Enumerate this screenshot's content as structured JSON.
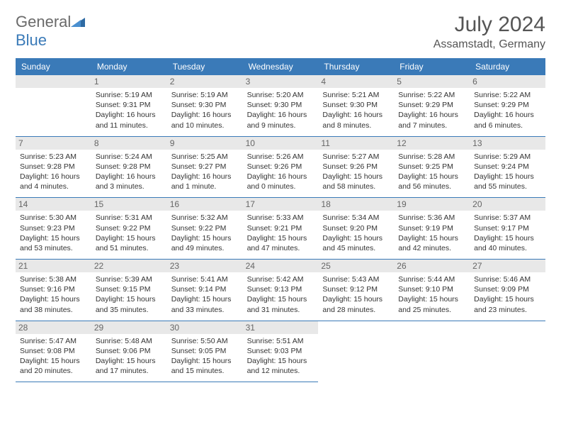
{
  "brand": {
    "part1": "General",
    "part2": "Blue"
  },
  "title": "July 2024",
  "location": "Assamstadt, Germany",
  "header_bg": "#3a7ab8",
  "text_color": "#333333",
  "daynum_bg": "#e8e8e8",
  "weekdays": [
    "Sunday",
    "Monday",
    "Tuesday",
    "Wednesday",
    "Thursday",
    "Friday",
    "Saturday"
  ],
  "weeks": [
    [
      {
        "n": "",
        "sr": "",
        "ss": "",
        "dl": ""
      },
      {
        "n": "1",
        "sr": "Sunrise: 5:19 AM",
        "ss": "Sunset: 9:31 PM",
        "dl": "Daylight: 16 hours and 11 minutes."
      },
      {
        "n": "2",
        "sr": "Sunrise: 5:19 AM",
        "ss": "Sunset: 9:30 PM",
        "dl": "Daylight: 16 hours and 10 minutes."
      },
      {
        "n": "3",
        "sr": "Sunrise: 5:20 AM",
        "ss": "Sunset: 9:30 PM",
        "dl": "Daylight: 16 hours and 9 minutes."
      },
      {
        "n": "4",
        "sr": "Sunrise: 5:21 AM",
        "ss": "Sunset: 9:30 PM",
        "dl": "Daylight: 16 hours and 8 minutes."
      },
      {
        "n": "5",
        "sr": "Sunrise: 5:22 AM",
        "ss": "Sunset: 9:29 PM",
        "dl": "Daylight: 16 hours and 7 minutes."
      },
      {
        "n": "6",
        "sr": "Sunrise: 5:22 AM",
        "ss": "Sunset: 9:29 PM",
        "dl": "Daylight: 16 hours and 6 minutes."
      }
    ],
    [
      {
        "n": "7",
        "sr": "Sunrise: 5:23 AM",
        "ss": "Sunset: 9:28 PM",
        "dl": "Daylight: 16 hours and 4 minutes."
      },
      {
        "n": "8",
        "sr": "Sunrise: 5:24 AM",
        "ss": "Sunset: 9:28 PM",
        "dl": "Daylight: 16 hours and 3 minutes."
      },
      {
        "n": "9",
        "sr": "Sunrise: 5:25 AM",
        "ss": "Sunset: 9:27 PM",
        "dl": "Daylight: 16 hours and 1 minute."
      },
      {
        "n": "10",
        "sr": "Sunrise: 5:26 AM",
        "ss": "Sunset: 9:26 PM",
        "dl": "Daylight: 16 hours and 0 minutes."
      },
      {
        "n": "11",
        "sr": "Sunrise: 5:27 AM",
        "ss": "Sunset: 9:26 PM",
        "dl": "Daylight: 15 hours and 58 minutes."
      },
      {
        "n": "12",
        "sr": "Sunrise: 5:28 AM",
        "ss": "Sunset: 9:25 PM",
        "dl": "Daylight: 15 hours and 56 minutes."
      },
      {
        "n": "13",
        "sr": "Sunrise: 5:29 AM",
        "ss": "Sunset: 9:24 PM",
        "dl": "Daylight: 15 hours and 55 minutes."
      }
    ],
    [
      {
        "n": "14",
        "sr": "Sunrise: 5:30 AM",
        "ss": "Sunset: 9:23 PM",
        "dl": "Daylight: 15 hours and 53 minutes."
      },
      {
        "n": "15",
        "sr": "Sunrise: 5:31 AM",
        "ss": "Sunset: 9:22 PM",
        "dl": "Daylight: 15 hours and 51 minutes."
      },
      {
        "n": "16",
        "sr": "Sunrise: 5:32 AM",
        "ss": "Sunset: 9:22 PM",
        "dl": "Daylight: 15 hours and 49 minutes."
      },
      {
        "n": "17",
        "sr": "Sunrise: 5:33 AM",
        "ss": "Sunset: 9:21 PM",
        "dl": "Daylight: 15 hours and 47 minutes."
      },
      {
        "n": "18",
        "sr": "Sunrise: 5:34 AM",
        "ss": "Sunset: 9:20 PM",
        "dl": "Daylight: 15 hours and 45 minutes."
      },
      {
        "n": "19",
        "sr": "Sunrise: 5:36 AM",
        "ss": "Sunset: 9:19 PM",
        "dl": "Daylight: 15 hours and 42 minutes."
      },
      {
        "n": "20",
        "sr": "Sunrise: 5:37 AM",
        "ss": "Sunset: 9:17 PM",
        "dl": "Daylight: 15 hours and 40 minutes."
      }
    ],
    [
      {
        "n": "21",
        "sr": "Sunrise: 5:38 AM",
        "ss": "Sunset: 9:16 PM",
        "dl": "Daylight: 15 hours and 38 minutes."
      },
      {
        "n": "22",
        "sr": "Sunrise: 5:39 AM",
        "ss": "Sunset: 9:15 PM",
        "dl": "Daylight: 15 hours and 35 minutes."
      },
      {
        "n": "23",
        "sr": "Sunrise: 5:41 AM",
        "ss": "Sunset: 9:14 PM",
        "dl": "Daylight: 15 hours and 33 minutes."
      },
      {
        "n": "24",
        "sr": "Sunrise: 5:42 AM",
        "ss": "Sunset: 9:13 PM",
        "dl": "Daylight: 15 hours and 31 minutes."
      },
      {
        "n": "25",
        "sr": "Sunrise: 5:43 AM",
        "ss": "Sunset: 9:12 PM",
        "dl": "Daylight: 15 hours and 28 minutes."
      },
      {
        "n": "26",
        "sr": "Sunrise: 5:44 AM",
        "ss": "Sunset: 9:10 PM",
        "dl": "Daylight: 15 hours and 25 minutes."
      },
      {
        "n": "27",
        "sr": "Sunrise: 5:46 AM",
        "ss": "Sunset: 9:09 PM",
        "dl": "Daylight: 15 hours and 23 minutes."
      }
    ],
    [
      {
        "n": "28",
        "sr": "Sunrise: 5:47 AM",
        "ss": "Sunset: 9:08 PM",
        "dl": "Daylight: 15 hours and 20 minutes."
      },
      {
        "n": "29",
        "sr": "Sunrise: 5:48 AM",
        "ss": "Sunset: 9:06 PM",
        "dl": "Daylight: 15 hours and 17 minutes."
      },
      {
        "n": "30",
        "sr": "Sunrise: 5:50 AM",
        "ss": "Sunset: 9:05 PM",
        "dl": "Daylight: 15 hours and 15 minutes."
      },
      {
        "n": "31",
        "sr": "Sunrise: 5:51 AM",
        "ss": "Sunset: 9:03 PM",
        "dl": "Daylight: 15 hours and 12 minutes."
      },
      {
        "n": "",
        "sr": "",
        "ss": "",
        "dl": ""
      },
      {
        "n": "",
        "sr": "",
        "ss": "",
        "dl": ""
      },
      {
        "n": "",
        "sr": "",
        "ss": "",
        "dl": ""
      }
    ]
  ]
}
